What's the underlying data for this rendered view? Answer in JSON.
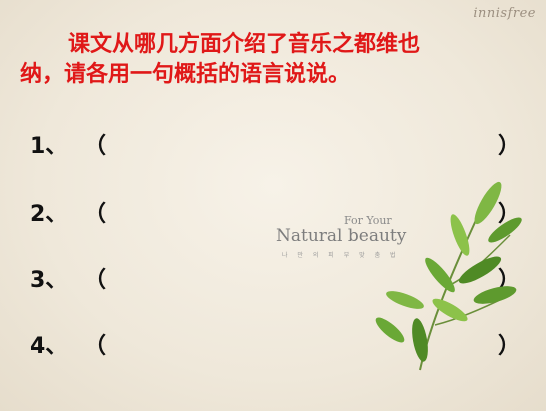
{
  "brand": "innisfree",
  "question": {
    "line1": "课文从哪几方面介绍了音乐之都维也",
    "line2": "纳，请各用一句概括的语言说说。"
  },
  "items": [
    {
      "number": "1、",
      "open": "（",
      "close": "）"
    },
    {
      "number": "2、",
      "open": "（",
      "close": "）"
    },
    {
      "number": "3、",
      "open": "（",
      "close": "）"
    },
    {
      "number": "4、",
      "open": "（",
      "close": "）"
    }
  ],
  "decoration": {
    "for_your": "For Your",
    "natural_beauty": "Natural beauty",
    "korean_tagline": "나 만 의 피 부 맞 춤 법",
    "leaf_icon": "green-leaves-icon",
    "colors": {
      "leaf": "#5e9a2e",
      "leaf_light": "#8cc24a",
      "question": "#e01818"
    }
  }
}
